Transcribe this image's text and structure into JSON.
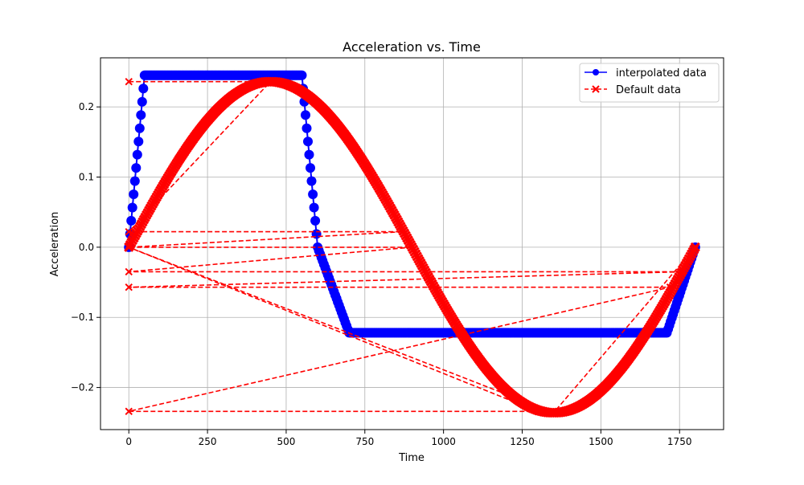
{
  "chart_data": {
    "type": "line",
    "title": "Acceleration vs. Time",
    "xlabel": "Time",
    "ylabel": "Acceleration",
    "xlim": [
      -90,
      1890
    ],
    "ylim": [
      -0.26,
      0.27
    ],
    "xticks": [
      0,
      250,
      500,
      750,
      1000,
      1250,
      1500,
      1750
    ],
    "xtick_labels": [
      "0",
      "250",
      "500",
      "750",
      "1000",
      "1250",
      "1500",
      "1750"
    ],
    "yticks": [
      -0.2,
      -0.1,
      0.0,
      0.1,
      0.2
    ],
    "ytick_labels": [
      "−0.2",
      "−0.1",
      "0.0",
      "0.1",
      "0.2"
    ],
    "grid": true,
    "legend_position": "upper right",
    "series": [
      {
        "name": "interpolated data",
        "color": "#0000ff",
        "line_style": "solid",
        "marker": "circle",
        "x": [
          0,
          50,
          550,
          600,
          700,
          1710,
          1800
        ],
        "y": [
          0.0,
          0.245,
          0.245,
          0.0,
          -0.122,
          -0.122,
          0.0
        ]
      },
      {
        "name": "Default data",
        "color": "#ff0000",
        "line_style": "dashed",
        "marker": "x",
        "x": [
          0,
          450,
          0,
          870,
          0,
          900,
          0,
          1760,
          0,
          1720,
          0,
          1300,
          0,
          1350,
          1800
        ],
        "y": [
          0.236,
          0.236,
          0.022,
          0.022,
          0.0,
          0.0,
          -0.035,
          -0.035,
          -0.057,
          -0.057,
          -0.234,
          -0.234,
          0.0,
          -0.236,
          0.0
        ]
      }
    ]
  }
}
